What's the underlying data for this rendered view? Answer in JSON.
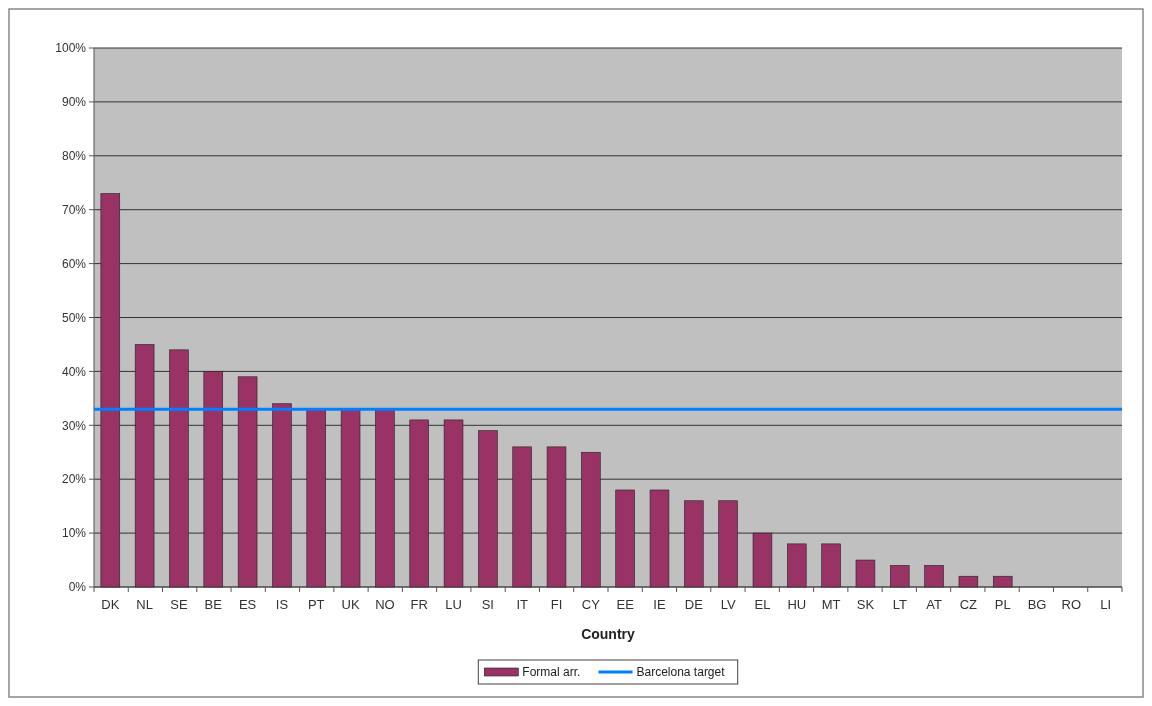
{
  "chart_data": {
    "type": "bar",
    "xlabel": "Country",
    "categories": [
      "DK",
      "NL",
      "SE",
      "BE",
      "ES",
      "IS",
      "PT",
      "UK",
      "NO",
      "FR",
      "LU",
      "SI",
      "IT",
      "FI",
      "CY",
      "EE",
      "IE",
      "DE",
      "LV",
      "EL",
      "HU",
      "MT",
      "SK",
      "LT",
      "AT",
      "CZ",
      "PL",
      "BG",
      "RO",
      "LI"
    ],
    "series": [
      {
        "name": "Formal arr.",
        "color": "#993366",
        "values": [
          73,
          45,
          44,
          40,
          39,
          34,
          33,
          33,
          33,
          31,
          31,
          29,
          26,
          26,
          25,
          18,
          18,
          16,
          16,
          10,
          8,
          8,
          5,
          4,
          4,
          2,
          2,
          0,
          0,
          0
        ]
      }
    ],
    "ylim": [
      0,
      100
    ],
    "yticks": [
      {
        "value": 0,
        "label": "0%"
      },
      {
        "value": 10,
        "label": "10%"
      },
      {
        "value": 20,
        "label": "20%"
      },
      {
        "value": 30,
        "label": "30%"
      },
      {
        "value": 40,
        "label": "40%"
      },
      {
        "value": 50,
        "label": "50%"
      },
      {
        "value": 60,
        "label": "60%"
      },
      {
        "value": 70,
        "label": "70%"
      },
      {
        "value": 80,
        "label": "80%"
      },
      {
        "value": 90,
        "label": "90%"
      },
      {
        "value": 100,
        "label": "100%"
      }
    ],
    "ref_lines": [
      {
        "axis": "y",
        "value": 33,
        "label": "Barcelona target",
        "color": "#0080ff"
      }
    ],
    "grid": "y",
    "legend": "bottom"
  }
}
